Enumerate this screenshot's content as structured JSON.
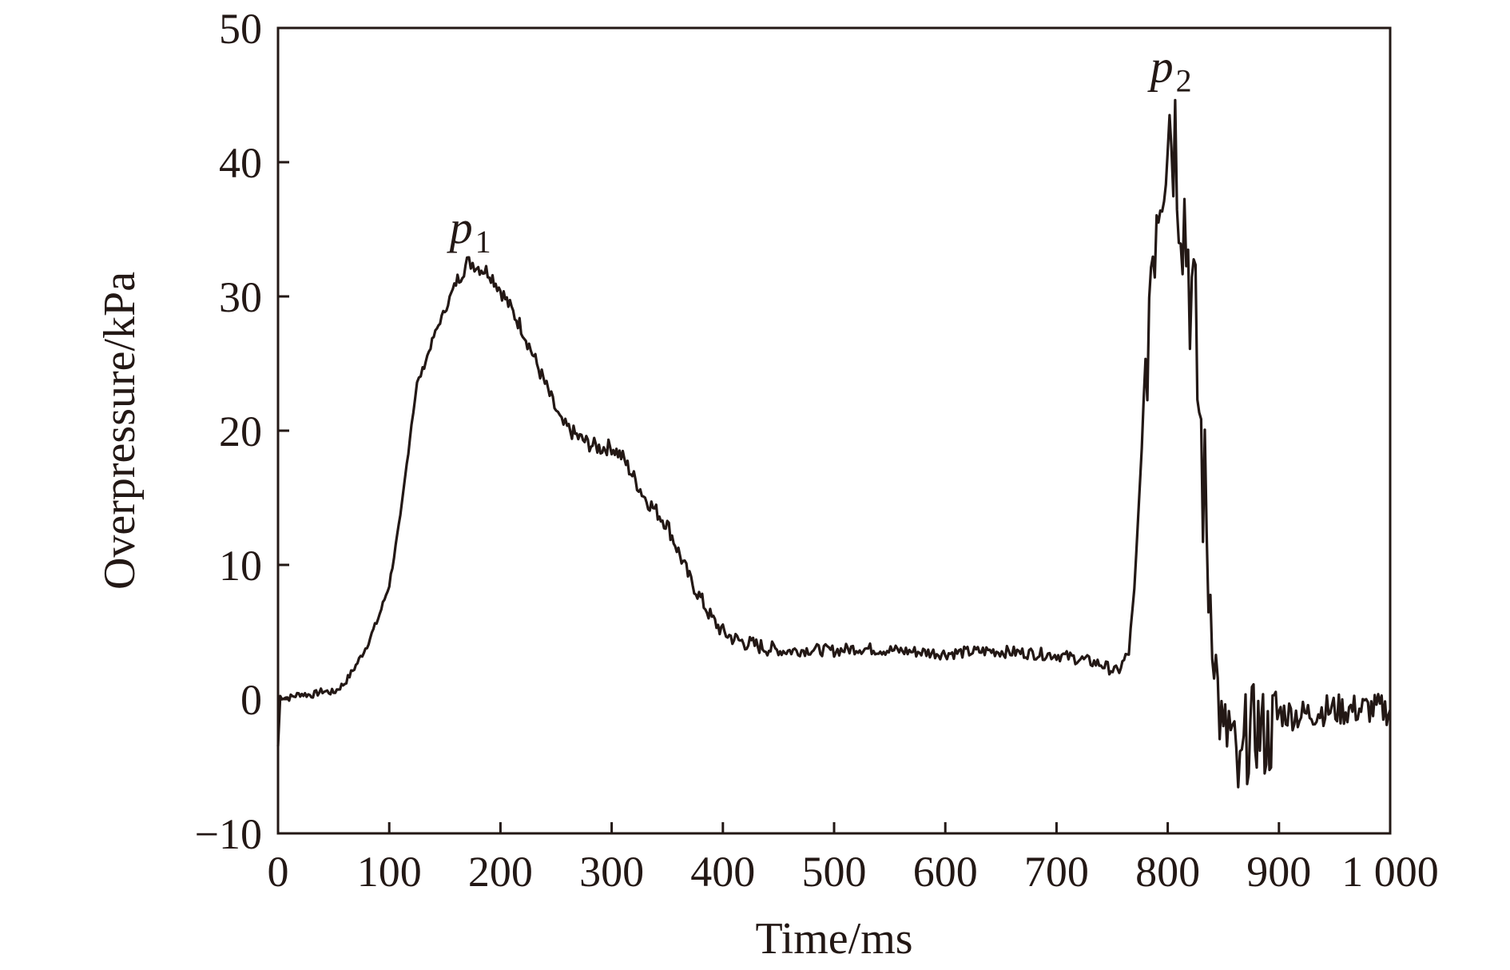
{
  "chart_data": {
    "type": "line",
    "title": "",
    "xlabel": "Time/ms",
    "ylabel": "Overpressure/kPa",
    "xlim": [
      0,
      1000
    ],
    "ylim": [
      -10,
      50
    ],
    "xticks": [
      0,
      100,
      200,
      300,
      400,
      500,
      600,
      700,
      800,
      900,
      1000
    ],
    "xtick_labels": [
      "0",
      "100",
      "200",
      "300",
      "400",
      "500",
      "600",
      "700",
      "800",
      "900",
      "1 000"
    ],
    "yticks": [
      -10,
      0,
      10,
      20,
      30,
      40,
      50
    ],
    "ytick_labels": [
      "−10",
      "0",
      "10",
      "20",
      "30",
      "40",
      "50"
    ],
    "grid": false,
    "colors": {
      "line": "#231815",
      "axes": "#231815"
    },
    "series": [
      {
        "x": [
          0,
          2,
          10,
          20,
          30,
          40,
          50,
          60,
          70,
          80,
          90,
          100,
          110,
          120,
          125,
          130,
          140,
          150,
          160,
          170,
          175,
          180,
          190,
          200,
          210,
          220,
          230,
          240,
          250,
          255,
          260,
          270,
          280,
          290,
          300,
          310,
          320,
          330,
          340,
          350,
          360,
          370,
          380,
          390,
          400,
          410,
          420,
          430,
          440,
          450,
          460,
          480,
          500,
          520,
          540,
          560,
          580,
          600,
          620,
          640,
          660,
          680,
          700,
          720,
          740,
          755,
          765,
          770,
          775,
          780,
          785,
          790,
          795,
          800,
          805,
          810,
          815,
          820,
          825,
          830,
          835,
          840,
          845,
          850,
          855,
          860,
          865,
          870,
          880,
          890,
          900,
          920,
          940,
          960,
          980,
          1000
        ],
        "y": [
          -3.5,
          0.2,
          0.1,
          0.4,
          0.3,
          0.6,
          0.5,
          1.2,
          2.5,
          4.0,
          6.0,
          8.5,
          13.5,
          20.5,
          23.5,
          24.5,
          27.0,
          29.0,
          31.0,
          32.5,
          32.5,
          32.2,
          31.8,
          30.5,
          29.0,
          27.5,
          25.5,
          23.5,
          21.5,
          20.5,
          20.2,
          19.5,
          19.0,
          18.7,
          18.8,
          18.0,
          16.5,
          15.0,
          14.0,
          13.0,
          11.0,
          9.0,
          7.5,
          6.0,
          5.0,
          4.5,
          4.2,
          4.0,
          3.8,
          3.6,
          3.6,
          3.7,
          3.6,
          3.8,
          3.7,
          3.6,
          3.5,
          3.4,
          3.5,
          3.6,
          3.5,
          3.4,
          3.3,
          3.0,
          2.6,
          2.0,
          3.5,
          8.0,
          16.0,
          25.0,
          33.0,
          38.0,
          41.0,
          44.0,
          43.0,
          40.0,
          36.0,
          32.0,
          26.0,
          19.0,
          12.0,
          6.0,
          0.5,
          -3.5,
          -2.0,
          -4.5,
          -6.5,
          -3.0,
          -2.0,
          -3.0,
          -1.0,
          -1.2,
          -0.8,
          -0.8,
          -0.7,
          -0.8
        ]
      }
    ],
    "annotations": [
      {
        "label": "p",
        "subscript": "1",
        "x": 170,
        "y": 33.5
      },
      {
        "label": "p",
        "subscript": "2",
        "x": 800,
        "y": 45.5
      }
    ]
  }
}
